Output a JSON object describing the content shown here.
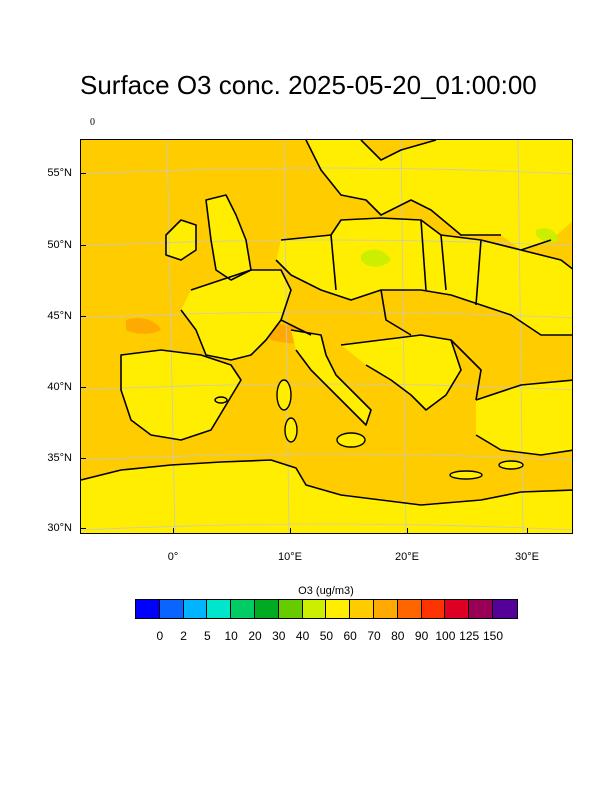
{
  "title": "Surface O3 conc. 2025-05-20_01:00:00",
  "small_label": "0",
  "lat_labels": [
    "55°N",
    "50°N",
    "45°N",
    "40°N",
    "35°N",
    "30°N"
  ],
  "lon_labels": [
    "0°",
    "10°E",
    "20°E",
    "30°E"
  ],
  "colorbar": {
    "title": "O3 (ug/m3)",
    "colors": [
      "#0000ff",
      "#0a64ff",
      "#00b4ff",
      "#00e6cc",
      "#00cc66",
      "#00aa22",
      "#66cc00",
      "#ccee00",
      "#ffee00",
      "#ffcc00",
      "#ffaa00",
      "#ff6600",
      "#ff3300",
      "#dd0022",
      "#990055",
      "#550099"
    ],
    "labels": [
      "0",
      "2",
      "5",
      "10",
      "20",
      "30",
      "40",
      "50",
      "60",
      "70",
      "80",
      "90",
      "100",
      "125",
      "150"
    ]
  },
  "map_colors": {
    "background": "#ffcc00",
    "land_60": "#ffee00",
    "land_70": "#ffcc00",
    "high_80": "#ffaa00",
    "green_50": "#ccee00",
    "coast": "#000000",
    "grid": "#c8c8c8"
  }
}
